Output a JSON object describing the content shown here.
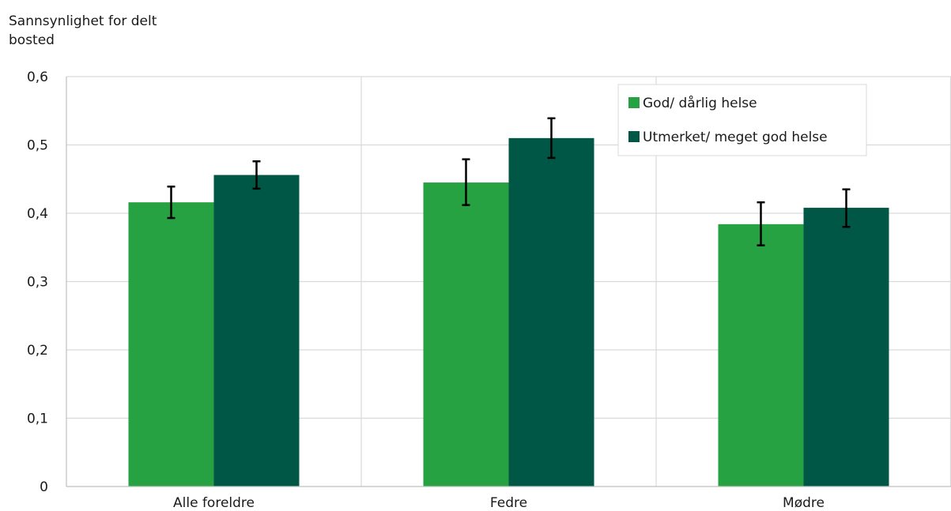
{
  "chart_data": {
    "type": "bar",
    "ylabel_lines": [
      "Sannsynlighet for delt",
      "bosted"
    ],
    "yticks": [
      "0",
      "0,1",
      "0,2",
      "0,3",
      "0,4",
      "0,5",
      "0,6"
    ],
    "ylim": [
      0,
      0.6
    ],
    "categories": [
      "Alle foreldre",
      "Fedre",
      "Mødre"
    ],
    "series": [
      {
        "name": "God/ dårlig helse",
        "color": "#27A243",
        "values": [
          0.416,
          0.445,
          0.384
        ],
        "err_low": [
          0.393,
          0.412,
          0.353
        ],
        "err_high": [
          0.439,
          0.479,
          0.416
        ]
      },
      {
        "name": "Utmerket/ meget god helse",
        "color": "#005745",
        "values": [
          0.456,
          0.51,
          0.408
        ],
        "err_low": [
          0.436,
          0.481,
          0.38
        ],
        "err_high": [
          0.476,
          0.539,
          0.435
        ]
      }
    ],
    "grid": true,
    "legend_position": "top-right"
  }
}
